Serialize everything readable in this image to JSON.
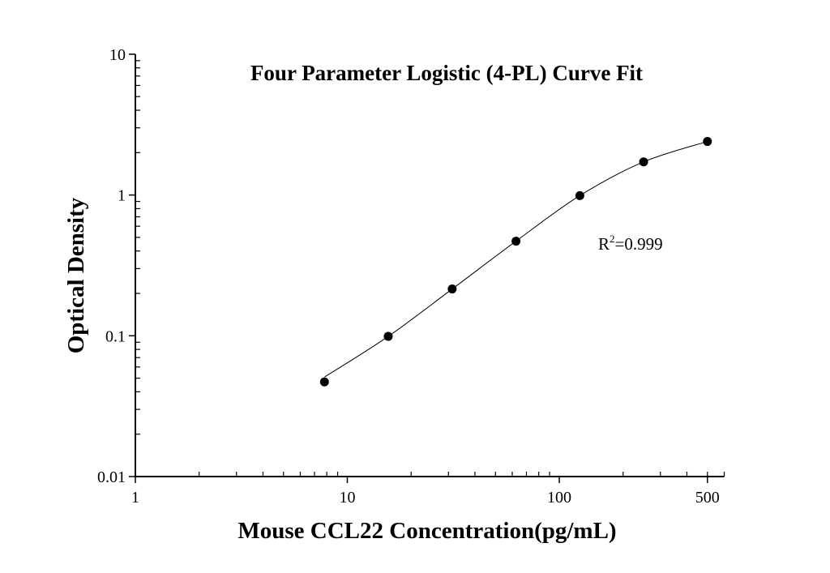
{
  "chart_data": {
    "type": "scatter",
    "title": "Four Parameter Logistic (4-PL) Curve Fit",
    "xlabel": "Mouse CCL22 Concentration(pg/mL)",
    "ylabel": "Optical Density",
    "xscale": "log",
    "yscale": "log",
    "xlim": [
      1,
      600
    ],
    "ylim": [
      0.01,
      10
    ],
    "x_ticks": [
      1,
      10,
      100,
      500
    ],
    "x_tick_labels": [
      "1",
      "10",
      "100",
      "500"
    ],
    "y_ticks": [
      0.01,
      0.1,
      1,
      10
    ],
    "y_tick_labels": [
      "0.01",
      "0.1",
      "1",
      "10"
    ],
    "grid": false,
    "series": [
      {
        "x": [
          7.8,
          15.6,
          31.25,
          62.5,
          125,
          250,
          500
        ],
        "y": [
          0.047,
          0.099,
          0.215,
          0.47,
          0.99,
          1.72,
          2.4
        ],
        "marker": "filled-circle",
        "fit_line": true
      }
    ],
    "annotation": {
      "base": "R",
      "sup": "2",
      "text": "=0.999"
    },
    "colors": {
      "points": "#000000",
      "line": "#000000"
    }
  }
}
